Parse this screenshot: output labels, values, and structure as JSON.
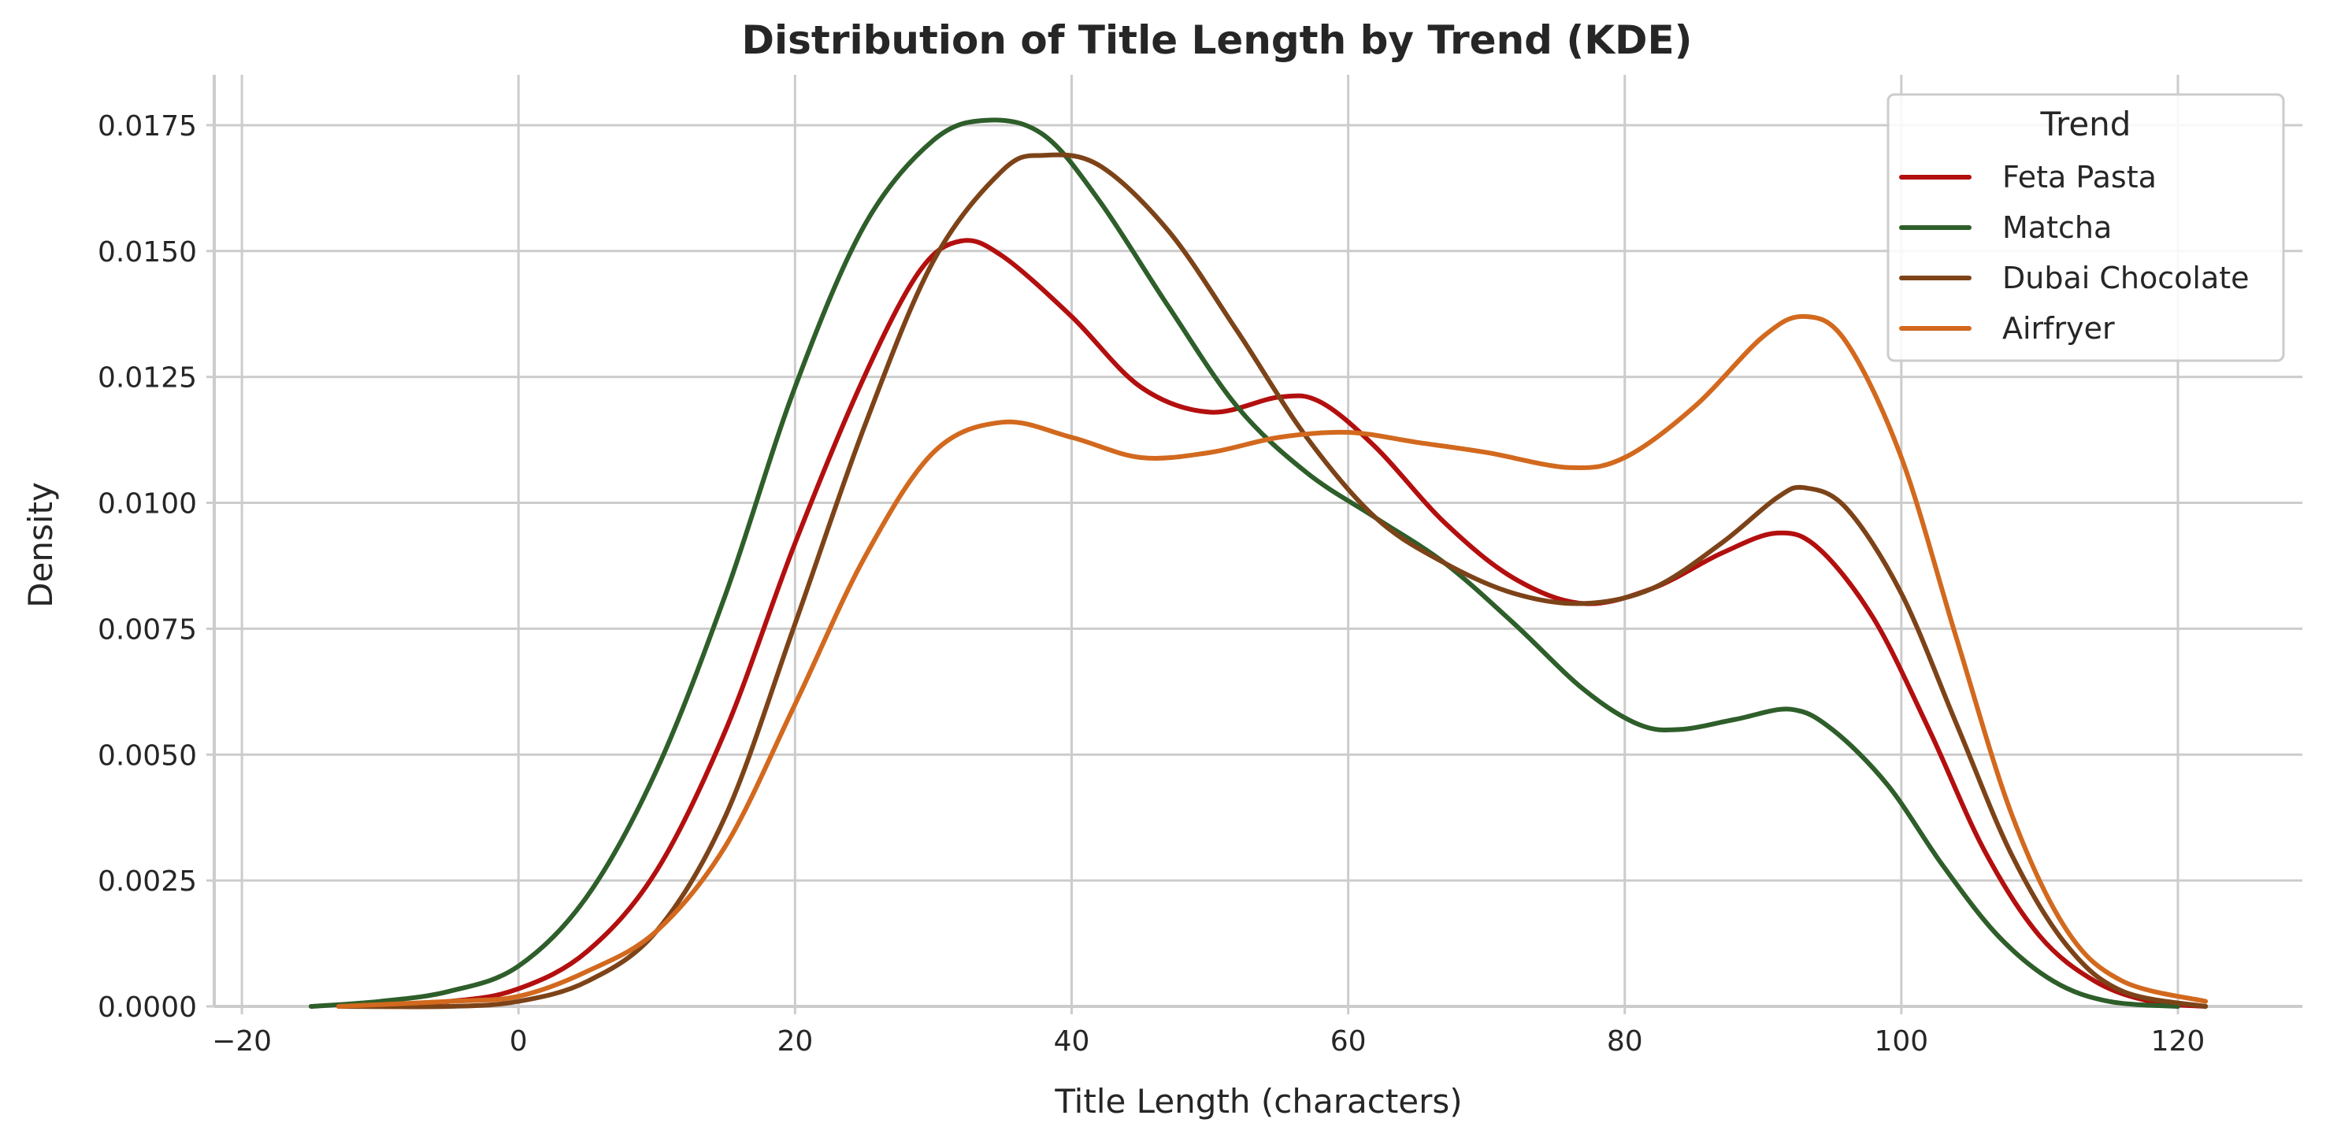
{
  "chart_data": {
    "type": "line",
    "title": "Distribution of Title Length by Trend (KDE)",
    "xlabel": "Title Length (characters)",
    "ylabel": "Density",
    "xlim": [
      -22,
      129
    ],
    "ylim": [
      0,
      0.0185
    ],
    "xticks": [
      -20,
      0,
      20,
      40,
      60,
      80,
      100,
      120
    ],
    "xtick_labels": [
      "−20",
      "0",
      "20",
      "40",
      "60",
      "80",
      "100",
      "120"
    ],
    "yticks": [
      0,
      0.0025,
      0.005,
      0.0075,
      0.01,
      0.0125,
      0.015,
      0.0175
    ],
    "ytick_labels": [
      "0.0000",
      "0.0025",
      "0.0050",
      "0.0075",
      "0.0100",
      "0.0125",
      "0.0150",
      "0.0175"
    ],
    "grid": true,
    "legend": {
      "title": "Trend",
      "position": "top-right"
    },
    "series": [
      {
        "name": "Feta Pasta",
        "color": "#b30f0f",
        "points": [
          [
            -13,
            0
          ],
          [
            -5,
            0.0001
          ],
          [
            0,
            0.00035
          ],
          [
            5,
            0.0011
          ],
          [
            10,
            0.0027
          ],
          [
            15,
            0.0055
          ],
          [
            20,
            0.0092
          ],
          [
            25,
            0.0125
          ],
          [
            29,
            0.0146
          ],
          [
            32,
            0.0152
          ],
          [
            35,
            0.0149
          ],
          [
            40,
            0.0137
          ],
          [
            45,
            0.0123
          ],
          [
            50,
            0.0118
          ],
          [
            55,
            0.0121
          ],
          [
            58,
            0.012
          ],
          [
            62,
            0.0111
          ],
          [
            67,
            0.0096
          ],
          [
            72,
            0.0085
          ],
          [
            77,
            0.008
          ],
          [
            82,
            0.0083
          ],
          [
            87,
            0.009
          ],
          [
            91,
            0.0094
          ],
          [
            94,
            0.0091
          ],
          [
            98,
            0.0077
          ],
          [
            102,
            0.0055
          ],
          [
            106,
            0.0031
          ],
          [
            110,
            0.0014
          ],
          [
            114,
            0.0005
          ],
          [
            118,
            0.0001
          ],
          [
            122,
            0
          ]
        ]
      },
      {
        "name": "Matcha",
        "color": "#2e5e2a",
        "points": [
          [
            -15,
            0
          ],
          [
            -10,
            0.0001
          ],
          [
            -5,
            0.0003
          ],
          [
            0,
            0.0008
          ],
          [
            5,
            0.0022
          ],
          [
            10,
            0.0047
          ],
          [
            15,
            0.0082
          ],
          [
            20,
            0.0123
          ],
          [
            25,
            0.0155
          ],
          [
            30,
            0.0172
          ],
          [
            34,
            0.0176
          ],
          [
            38,
            0.0173
          ],
          [
            42,
            0.016
          ],
          [
            47,
            0.0139
          ],
          [
            52,
            0.0119
          ],
          [
            57,
            0.0106
          ],
          [
            62,
            0.0097
          ],
          [
            67,
            0.0088
          ],
          [
            72,
            0.0076
          ],
          [
            77,
            0.0063
          ],
          [
            81,
            0.0056
          ],
          [
            84,
            0.0055
          ],
          [
            88,
            0.0057
          ],
          [
            92,
            0.0059
          ],
          [
            95,
            0.0055
          ],
          [
            99,
            0.0044
          ],
          [
            103,
            0.0028
          ],
          [
            107,
            0.0014
          ],
          [
            111,
            0.0005
          ],
          [
            115,
            0.0001
          ],
          [
            120,
            0
          ]
        ]
      },
      {
        "name": "Dubai Chocolate",
        "color": "#7d4318",
        "points": [
          [
            -13,
            0
          ],
          [
            -5,
            0
          ],
          [
            0,
            0.0001
          ],
          [
            5,
            0.0005
          ],
          [
            10,
            0.0015
          ],
          [
            15,
            0.0038
          ],
          [
            20,
            0.0076
          ],
          [
            25,
            0.0115
          ],
          [
            30,
            0.0148
          ],
          [
            35,
            0.0166
          ],
          [
            38,
            0.0169
          ],
          [
            42,
            0.0167
          ],
          [
            47,
            0.0154
          ],
          [
            52,
            0.0134
          ],
          [
            57,
            0.0113
          ],
          [
            62,
            0.0097
          ],
          [
            67,
            0.0088
          ],
          [
            72,
            0.0082
          ],
          [
            77,
            0.008
          ],
          [
            82,
            0.0083
          ],
          [
            87,
            0.0092
          ],
          [
            91,
            0.0101
          ],
          [
            93,
            0.0103
          ],
          [
            96,
            0.0099
          ],
          [
            100,
            0.0082
          ],
          [
            104,
            0.0056
          ],
          [
            108,
            0.003
          ],
          [
            112,
            0.0012
          ],
          [
            116,
            0.0003
          ],
          [
            122,
            0
          ]
        ]
      },
      {
        "name": "Airfryer",
        "color": "#d2691e",
        "points": [
          [
            -13,
            0
          ],
          [
            -5,
            0.0001
          ],
          [
            0,
            0.0002
          ],
          [
            5,
            0.0007
          ],
          [
            10,
            0.0015
          ],
          [
            15,
            0.0032
          ],
          [
            20,
            0.006
          ],
          [
            25,
            0.0089
          ],
          [
            30,
            0.011
          ],
          [
            35,
            0.0116
          ],
          [
            40,
            0.0113
          ],
          [
            45,
            0.0109
          ],
          [
            50,
            0.011
          ],
          [
            55,
            0.0113
          ],
          [
            60,
            0.0114
          ],
          [
            65,
            0.0112
          ],
          [
            70,
            0.011
          ],
          [
            76,
            0.0107
          ],
          [
            80,
            0.0109
          ],
          [
            85,
            0.0119
          ],
          [
            90,
            0.0133
          ],
          [
            93,
            0.0137
          ],
          [
            96,
            0.0132
          ],
          [
            100,
            0.0109
          ],
          [
            104,
            0.0073
          ],
          [
            108,
            0.0038
          ],
          [
            112,
            0.0015
          ],
          [
            116,
            0.0005
          ],
          [
            122,
            0.0001
          ]
        ]
      }
    ]
  }
}
